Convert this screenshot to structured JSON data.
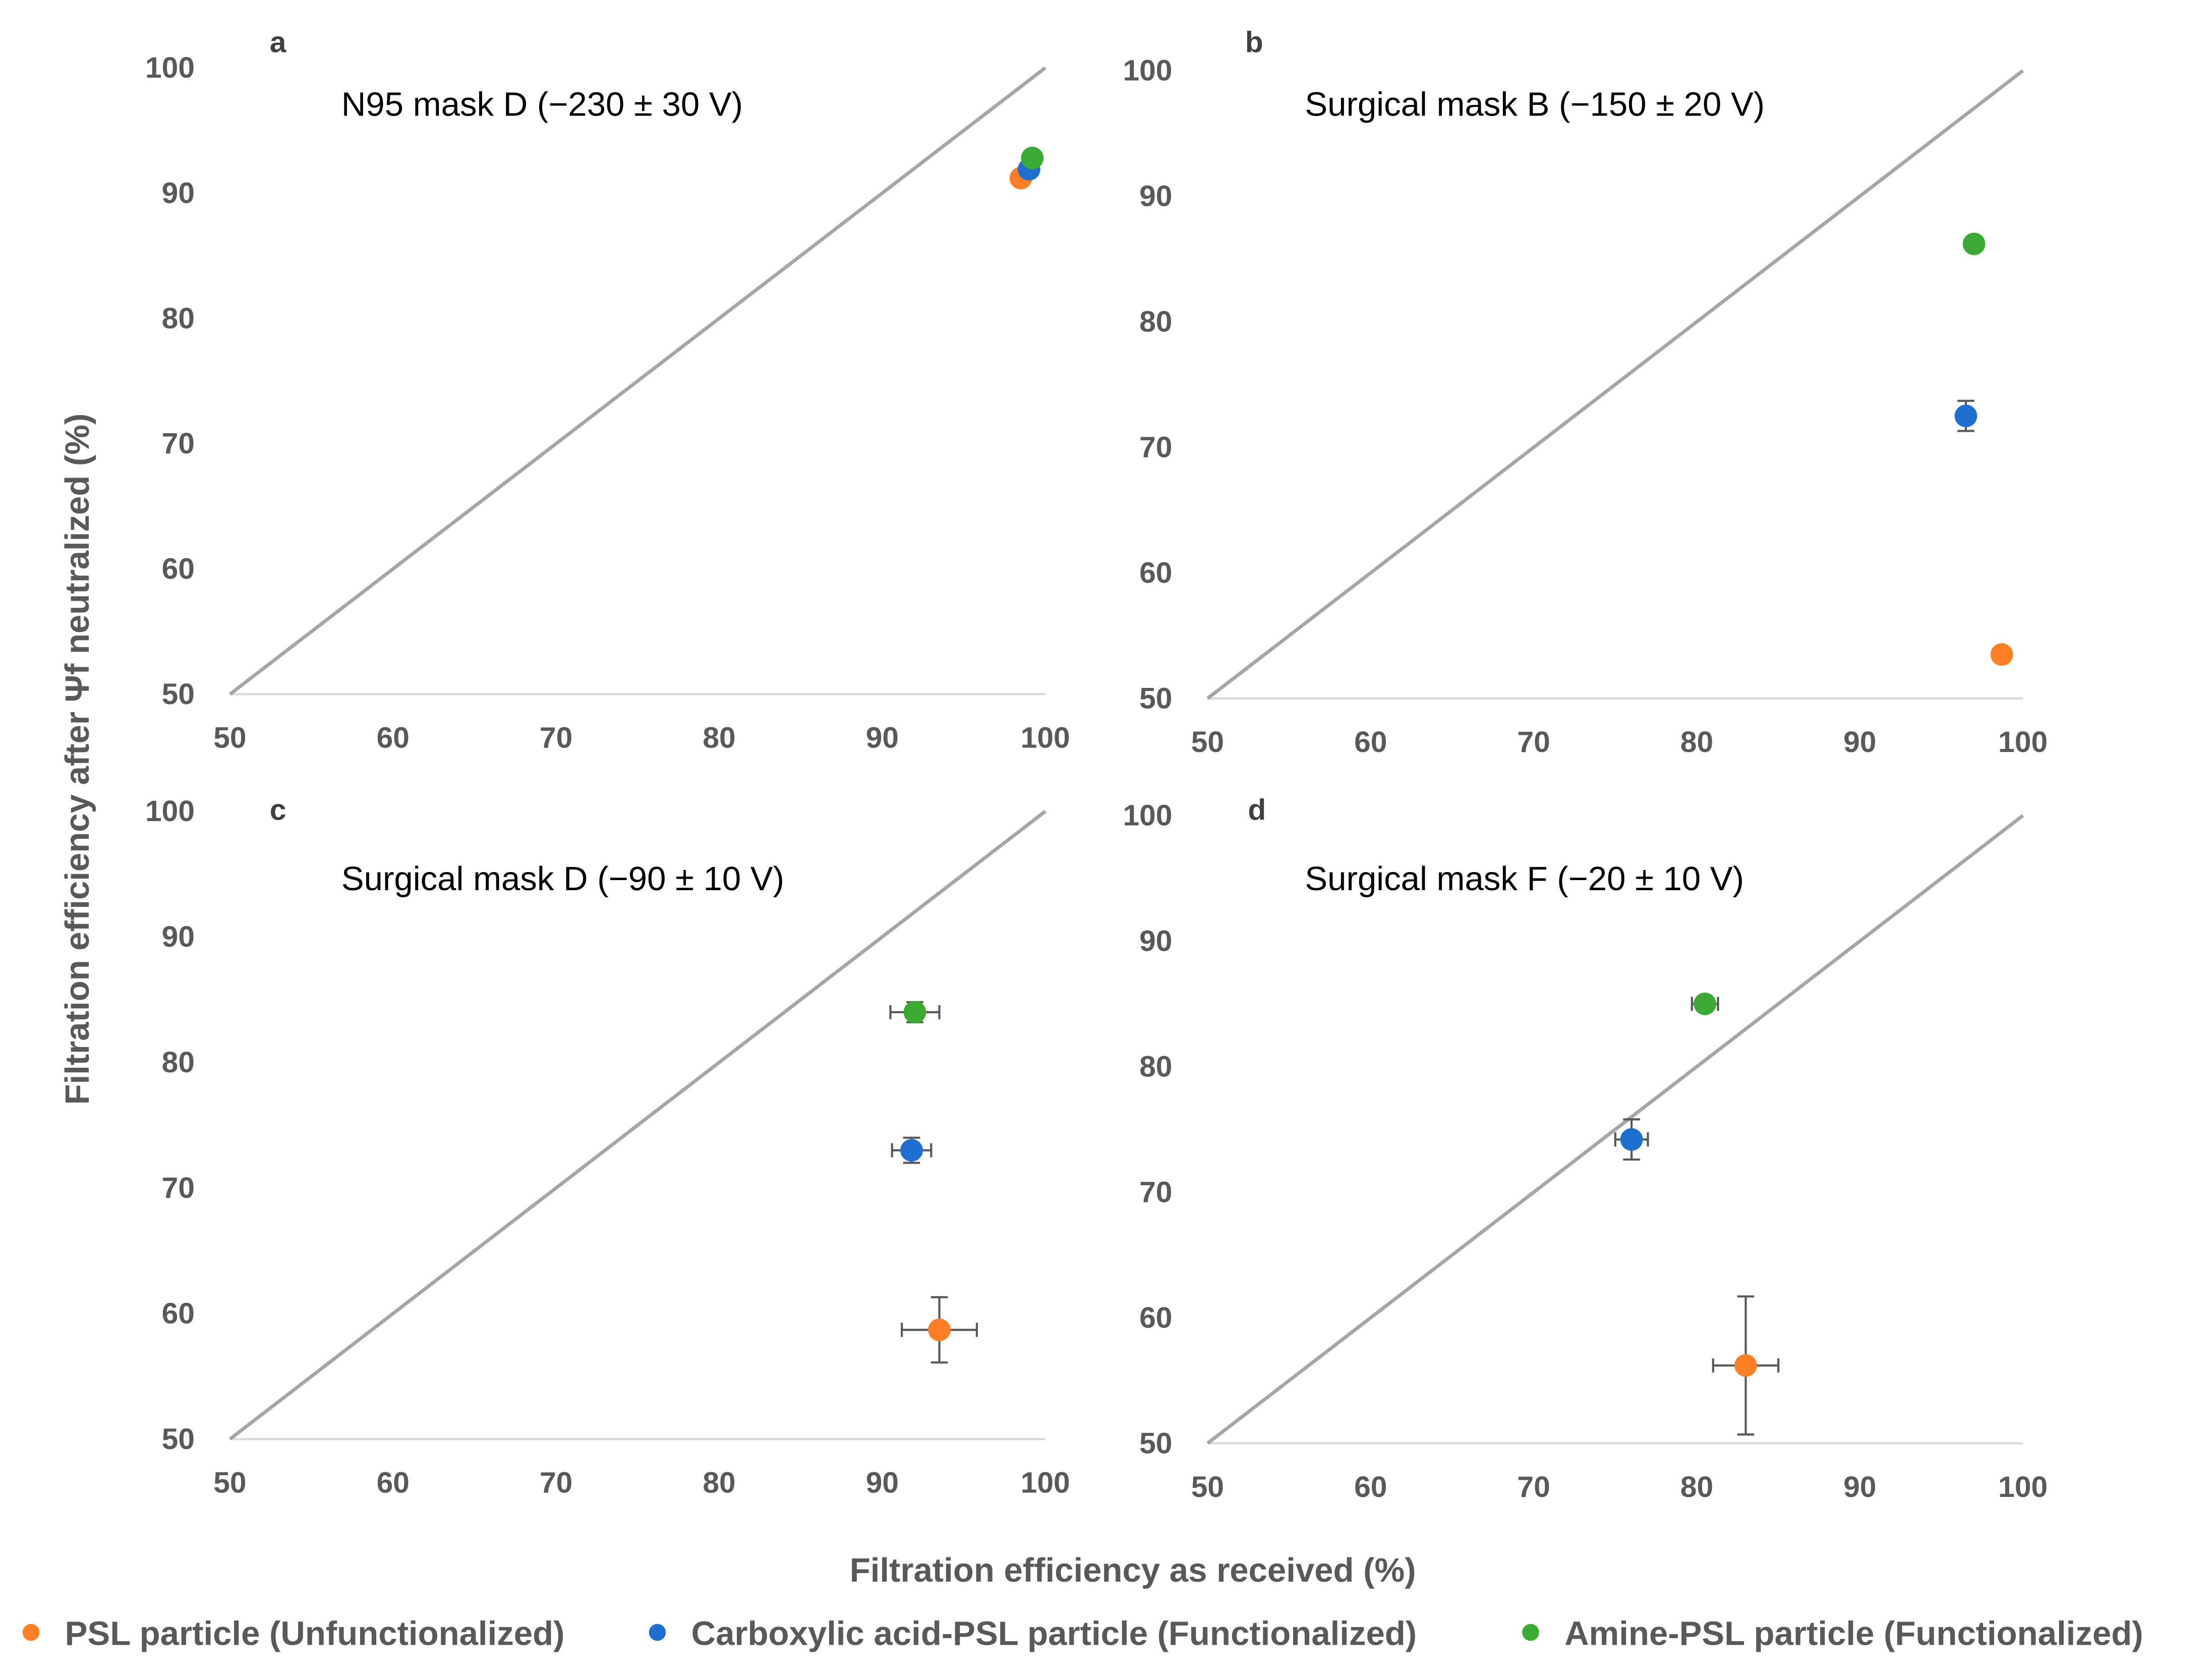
{
  "chart_data": {
    "type": "scatter",
    "xlabel": "Filtration efficiency as received (%)",
    "ylabel": "Filtration efficiency after Ψf neutralized (%)",
    "legend_placement": "bottom",
    "colors": {
      "psl": "#ff7f27",
      "carboxylic": "#1f6fd1",
      "amine": "#3aaa35",
      "line": "#a6a6a6",
      "errorbar": "#595959"
    },
    "legend": [
      {
        "key": "psl",
        "label": "PSL particle (Unfunctionalized)"
      },
      {
        "key": "carboxylic",
        "label": "Carboxylic acid-PSL particle (Functionalized)"
      },
      {
        "key": "amine",
        "label": "Amine-PSL particle (Functionalized)"
      }
    ],
    "panels": [
      {
        "letter": "a",
        "title": "N95 mask D (−230 ± 30 V)",
        "xlim": [
          50,
          100
        ],
        "ylim": [
          50,
          100
        ],
        "xticks": [
          "50",
          "60",
          "70",
          "80",
          "90",
          "100"
        ],
        "yticks": [
          "50",
          "60",
          "70",
          "80",
          "90",
          "100"
        ],
        "reference_line": "y=x",
        "series": [
          {
            "key": "psl",
            "x": 98.5,
            "y": 91.2,
            "xerr": 0,
            "yerr": 0
          },
          {
            "key": "carboxylic",
            "x": 99.0,
            "y": 91.9,
            "xerr": 0,
            "yerr": 0
          },
          {
            "key": "amine",
            "x": 99.2,
            "y": 92.8,
            "xerr": 0,
            "yerr": 0
          }
        ]
      },
      {
        "letter": "b",
        "title": "Surgical mask B (−150 ± 20 V)",
        "xlim": [
          50,
          100
        ],
        "ylim": [
          50,
          100
        ],
        "xticks": [
          "50",
          "60",
          "70",
          "80",
          "90",
          "100"
        ],
        "yticks": [
          "50",
          "60",
          "70",
          "80",
          "90",
          "100"
        ],
        "reference_line": "y=x",
        "series": [
          {
            "key": "psl",
            "x": 98.7,
            "y": 53.5,
            "xerr": 0,
            "yerr": 0
          },
          {
            "key": "carboxylic",
            "x": 96.5,
            "y": 72.5,
            "xerr": 0,
            "yerr": 1.2
          },
          {
            "key": "amine",
            "x": 97.0,
            "y": 86.2,
            "xerr": 0,
            "yerr": 0.5
          }
        ]
      },
      {
        "letter": "c",
        "title": "Surgical mask D (−90 ± 10 V)",
        "xlim": [
          50,
          100
        ],
        "ylim": [
          50,
          100
        ],
        "xticks": [
          "50",
          "60",
          "70",
          "80",
          "90",
          "100"
        ],
        "yticks": [
          "50",
          "60",
          "70",
          "80",
          "90",
          "100"
        ],
        "reference_line": "y=x",
        "series": [
          {
            "key": "psl",
            "x": 93.5,
            "y": 58.7,
            "xerr": 2.3,
            "yerr": 2.6
          },
          {
            "key": "carboxylic",
            "x": 91.8,
            "y": 73.0,
            "xerr": 1.2,
            "yerr": 1.0
          },
          {
            "key": "amine",
            "x": 92.0,
            "y": 84.0,
            "xerr": 1.5,
            "yerr": 0.8
          }
        ]
      },
      {
        "letter": "d",
        "title": "Surgical mask F (−20 ± 10 V)",
        "xlim": [
          50,
          100
        ],
        "ylim": [
          50,
          100
        ],
        "xticks": [
          "50",
          "60",
          "70",
          "80",
          "90",
          "100"
        ],
        "yticks": [
          "50",
          "60",
          "70",
          "80",
          "90",
          "100"
        ],
        "reference_line": "y=x",
        "series": [
          {
            "key": "psl",
            "x": 83.0,
            "y": 56.2,
            "xerr": 2.0,
            "yerr": 5.5
          },
          {
            "key": "carboxylic",
            "x": 76.0,
            "y": 74.2,
            "xerr": 1.0,
            "yerr": 1.6
          },
          {
            "key": "amine",
            "x": 80.5,
            "y": 85.0,
            "xerr": 0.8,
            "yerr": 0.4
          }
        ]
      }
    ]
  }
}
